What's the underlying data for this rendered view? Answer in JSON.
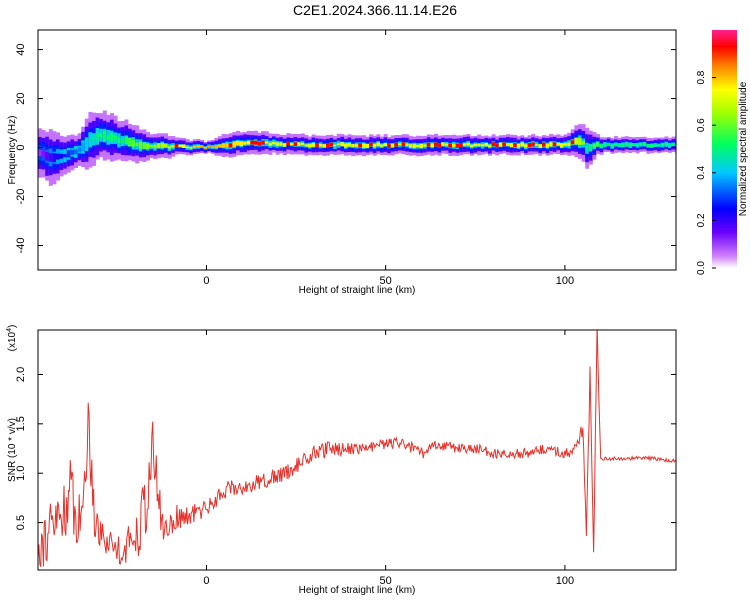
{
  "title": "C2E1.2024.366.11.14.E26",
  "chart_data": [
    {
      "type": "heatmap",
      "name": "spectrogram",
      "xlabel": "Height of straight line (km)",
      "ylabel": "Frequency (Hz)",
      "xlim": [
        -47,
        131
      ],
      "ylim": [
        -50,
        48
      ],
      "x_ticks": [
        0,
        50,
        100
      ],
      "y_ticks": [
        -40,
        -20,
        0,
        20,
        40
      ],
      "colorbar": {
        "label": "Normalized spectral amplitude",
        "range": [
          0.0,
          1.0
        ],
        "ticks": [
          0.0,
          0.2,
          0.4,
          0.6,
          0.8
        ]
      },
      "ridge": {
        "x": [
          -47,
          -44,
          -40,
          -36,
          -33,
          -30,
          -27,
          -24,
          -21,
          -18,
          -15,
          -12,
          -8,
          -4,
          0,
          5,
          10,
          20,
          30,
          40,
          50,
          60,
          70,
          80,
          90,
          100,
          104,
          106,
          108,
          110,
          131
        ],
        "center_hz": [
          -2,
          -4,
          -3,
          -1,
          3,
          5,
          4,
          3,
          2,
          1,
          0.5,
          0.5,
          0.3,
          0.2,
          0,
          1,
          2,
          1.5,
          1,
          1,
          1,
          1,
          1,
          1,
          1,
          1,
          3,
          -1,
          1,
          1,
          1
        ],
        "spread_hz": [
          6,
          7,
          5,
          4,
          7,
          6,
          6,
          5,
          5,
          4,
          3,
          3,
          2,
          2,
          1.5,
          3,
          3,
          2.5,
          2.5,
          2.5,
          2.5,
          2.5,
          2.5,
          2.5,
          2.5,
          2.5,
          5,
          5,
          3,
          2,
          2
        ],
        "peak_amplitude": [
          0.3,
          0.35,
          0.4,
          0.45,
          0.5,
          0.55,
          0.55,
          0.55,
          0.6,
          0.6,
          0.65,
          0.7,
          0.8,
          0.9,
          0.95,
          0.9,
          0.85,
          0.8,
          0.8,
          0.8,
          0.8,
          0.8,
          0.8,
          0.8,
          0.8,
          0.8,
          0.7,
          0.5,
          0.6,
          0.55,
          0.55
        ]
      }
    },
    {
      "type": "line",
      "name": "snr",
      "xlabel": "Height of straight line (km)",
      "ylabel": "SNR (10 * v/v)",
      "y_scale_label": "(x10",
      "y_scale_exp": "4",
      "xlim": [
        -47,
        131
      ],
      "ylim": [
        0.02,
        2.45
      ],
      "x_ticks": [
        0,
        50,
        100
      ],
      "y_ticks": [
        0.5,
        1.0,
        1.5,
        2.0
      ],
      "color": "#e8312a",
      "series": [
        {
          "x": [
            -47,
            -44,
            -41,
            -38,
            -35,
            -33,
            -31,
            -29,
            -27,
            -25,
            -23,
            -21,
            -19,
            -17,
            -15,
            -12,
            -9,
            -6,
            -3,
            0,
            3,
            6,
            10,
            14,
            18,
            22,
            26,
            30,
            35,
            40,
            45,
            50,
            55,
            60,
            65,
            70,
            75,
            80,
            85,
            90,
            95,
            100,
            103,
            105,
            106,
            107,
            108,
            109,
            110,
            115,
            120,
            125,
            131
          ],
          "values": [
            0.25,
            0.4,
            0.55,
            0.8,
            0.45,
            1.5,
            0.55,
            0.35,
            0.3,
            0.25,
            0.2,
            0.35,
            0.45,
            0.7,
            1.2,
            0.4,
            0.55,
            0.55,
            0.6,
            0.65,
            0.75,
            0.85,
            0.85,
            0.9,
            0.95,
            1.0,
            1.1,
            1.2,
            1.25,
            1.25,
            1.25,
            1.3,
            1.3,
            1.2,
            1.3,
            1.25,
            1.25,
            1.2,
            1.2,
            1.2,
            1.25,
            1.2,
            1.25,
            1.45,
            0.3,
            2.0,
            0.2,
            2.45,
            1.15,
            1.15,
            1.15,
            1.15,
            1.12
          ],
          "noise_amplitude": [
            0.25,
            0.3,
            0.35,
            0.35,
            0.3,
            0.3,
            0.3,
            0.2,
            0.15,
            0.15,
            0.15,
            0.2,
            0.3,
            0.35,
            0.35,
            0.2,
            0.15,
            0.1,
            0.1,
            0.1,
            0.08,
            0.08,
            0.08,
            0.08,
            0.08,
            0.08,
            0.08,
            0.08,
            0.08,
            0.06,
            0.06,
            0.06,
            0.06,
            0.06,
            0.06,
            0.05,
            0.05,
            0.05,
            0.05,
            0.05,
            0.05,
            0.06,
            0.06,
            0.1,
            0.1,
            0.1,
            0.1,
            0.1,
            0.02,
            0.02,
            0.02,
            0.02,
            0.02
          ]
        }
      ]
    }
  ]
}
